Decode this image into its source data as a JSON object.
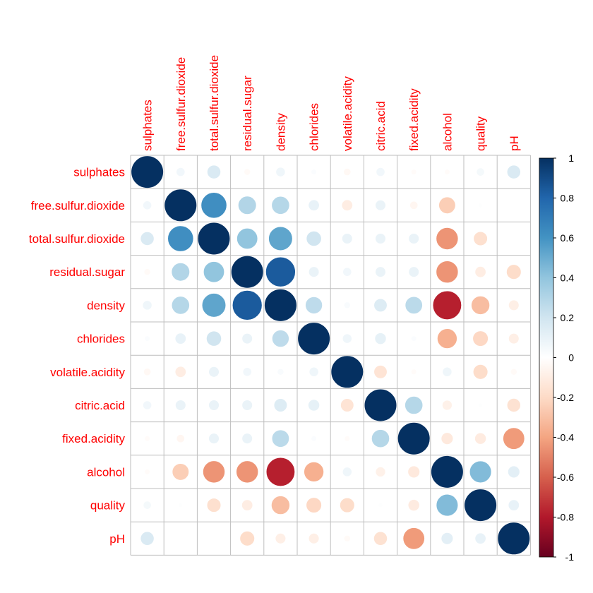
{
  "chart_data": {
    "type": "heatmap",
    "variables": [
      "sulphates",
      "free.sulfur.dioxide",
      "total.sulfur.dioxide",
      "residual.sugar",
      "density",
      "chlorides",
      "volatile.acidity",
      "citric.acid",
      "fixed.acidity",
      "alcohol",
      "quality",
      "pH"
    ],
    "matrix": [
      [
        1.0,
        0.06,
        0.16,
        -0.03,
        0.07,
        0.02,
        -0.04,
        0.06,
        -0.02,
        -0.02,
        0.05,
        0.16
      ],
      [
        0.06,
        1.0,
        0.62,
        0.3,
        0.29,
        0.1,
        -0.1,
        0.09,
        -0.05,
        -0.25,
        0.01,
        0.0
      ],
      [
        0.16,
        0.62,
        1.0,
        0.4,
        0.53,
        0.2,
        0.09,
        0.09,
        0.09,
        -0.45,
        -0.17,
        0.0
      ],
      [
        -0.03,
        0.3,
        0.4,
        1.0,
        0.84,
        0.09,
        0.06,
        0.09,
        0.09,
        -0.45,
        -0.1,
        -0.19
      ],
      [
        0.07,
        0.29,
        0.53,
        0.84,
        1.0,
        0.26,
        0.03,
        0.15,
        0.27,
        -0.78,
        -0.31,
        -0.09
      ],
      [
        0.02,
        0.1,
        0.2,
        0.09,
        0.26,
        1.0,
        0.07,
        0.11,
        0.02,
        -0.36,
        -0.21,
        -0.09
      ],
      [
        -0.04,
        -0.1,
        0.09,
        0.06,
        0.03,
        0.07,
        1.0,
        -0.15,
        -0.02,
        0.07,
        -0.19,
        -0.03
      ],
      [
        0.06,
        0.09,
        0.09,
        0.09,
        0.15,
        0.11,
        -0.15,
        1.0,
        0.29,
        -0.08,
        0.01,
        -0.16
      ],
      [
        -0.02,
        -0.05,
        0.09,
        0.09,
        0.27,
        0.02,
        -0.02,
        0.29,
        1.0,
        -0.12,
        -0.11,
        -0.43
      ],
      [
        -0.02,
        -0.25,
        -0.45,
        -0.45,
        -0.78,
        -0.36,
        0.07,
        -0.08,
        -0.12,
        1.0,
        0.44,
        0.12
      ],
      [
        0.05,
        0.01,
        -0.17,
        -0.1,
        -0.31,
        -0.21,
        -0.19,
        0.01,
        -0.11,
        0.44,
        1.0,
        0.1
      ],
      [
        0.16,
        0.0,
        0.0,
        -0.19,
        -0.09,
        -0.09,
        -0.03,
        -0.16,
        -0.43,
        0.12,
        0.1,
        1.0
      ]
    ],
    "colorbar": {
      "ticks": [
        "1",
        "0.8",
        "0.6",
        "0.4",
        "0.2",
        "0",
        "-0.2",
        "-0.4",
        "-0.6",
        "-0.8",
        "-1"
      ],
      "range": [
        -1,
        1
      ]
    },
    "label_color": "#FF0000",
    "grid_color": "#BEBEBE",
    "palette": [
      "#67001F",
      "#B2182B",
      "#D6604D",
      "#F4A582",
      "#FDDBC7",
      "#FFFFFF",
      "#D1E5F0",
      "#92C5DE",
      "#4393C3",
      "#2166AC",
      "#053061"
    ]
  }
}
